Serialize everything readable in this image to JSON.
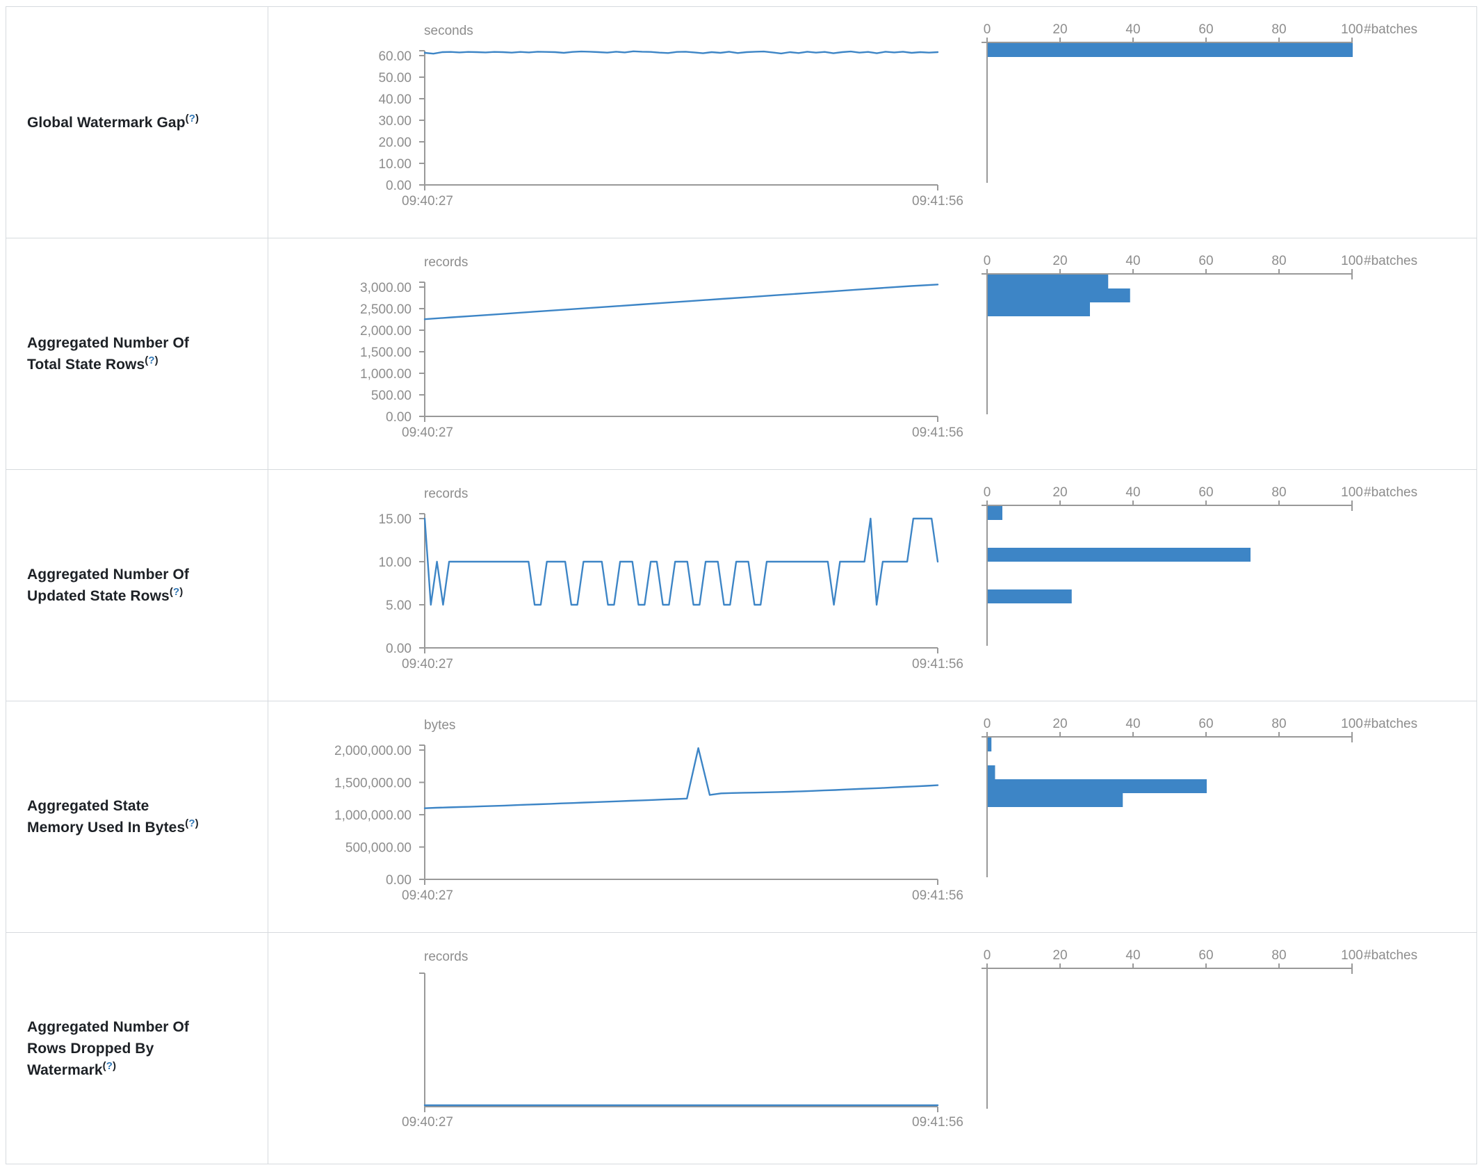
{
  "accent_color": "#3d85c6",
  "axis_color": "#999999",
  "label_color": "#8d8d8d",
  "help_badge": {
    "open": "(",
    "mark": "?",
    "close": ")"
  },
  "rows": [
    {
      "label": "Global Watermark Gap",
      "timeline": "wm_gap_timeline",
      "histogram": "wm_gap_hist"
    },
    {
      "label": "Aggregated Number Of Total State Rows",
      "timeline": "total_rows_timeline",
      "histogram": "total_rows_hist"
    },
    {
      "label": "Aggregated Number Of Updated State Rows",
      "timeline": "updated_rows_timeline",
      "histogram": "updated_rows_hist"
    },
    {
      "label": "Aggregated State Memory Used In Bytes",
      "timeline": "memory_timeline",
      "histogram": "memory_hist"
    },
    {
      "label": "Aggregated Number Of Rows Dropped By Watermark",
      "timeline": "dropped_rows_timeline",
      "histogram": "dropped_rows_hist"
    }
  ],
  "chart_data": [
    {
      "id": "wm_gap_timeline",
      "type": "line",
      "title": "seconds",
      "x_start_label": "09:40:27",
      "x_end_label": "09:41:56",
      "y_ticks": [
        60,
        50,
        40,
        30,
        20,
        10,
        0
      ],
      "y_tick_labels": [
        "60.00",
        "50.00",
        "40.00",
        "30.00",
        "20.00",
        "10.00",
        "0.00"
      ],
      "ylim": [
        0,
        60
      ],
      "bare_axis": false,
      "values": [
        61.3,
        60.9,
        61.6,
        61.7,
        61.5,
        61.7,
        61.6,
        61.5,
        61.7,
        61.6,
        61.4,
        61.7,
        61.5,
        61.8,
        61.7,
        61.6,
        61.3,
        61.7,
        61.9,
        61.8,
        61.6,
        61.4,
        61.8,
        61.5,
        62.0,
        61.8,
        61.7,
        61.4,
        61.2,
        61.7,
        61.8,
        61.5,
        61.1,
        61.6,
        61.3,
        61.8,
        61.2,
        61.6,
        61.8,
        61.9,
        61.5,
        61.0,
        61.6,
        61.2,
        61.8,
        61.4,
        61.7,
        61.1,
        61.6,
        61.9,
        61.4,
        61.7,
        61.1,
        61.8,
        61.5,
        61.8,
        61.3,
        61.6,
        61.4,
        61.6
      ]
    },
    {
      "id": "wm_gap_hist",
      "type": "bar-h",
      "xlabel": "#batches",
      "x_ticks": [
        0,
        20,
        40,
        60,
        80,
        100
      ],
      "xlim": [
        0,
        100
      ],
      "bars": [
        {
          "slot": 0,
          "count": 100
        }
      ]
    },
    {
      "id": "total_rows_timeline",
      "type": "line",
      "title": "records",
      "x_start_label": "09:40:27",
      "x_end_label": "09:41:56",
      "y_ticks": [
        3000,
        2500,
        2000,
        1500,
        1000,
        500,
        0
      ],
      "y_tick_labels": [
        "3,000.00",
        "2,500.00",
        "2,000.00",
        "1,500.00",
        "1,000.00",
        "500.00",
        "0.00"
      ],
      "ylim": [
        0,
        3000
      ],
      "bare_axis": false,
      "values": [
        2255,
        2298,
        2340,
        2383,
        2426,
        2469,
        2512,
        2554,
        2597,
        2640,
        2683,
        2726,
        2768,
        2811,
        2854,
        2897,
        2940,
        2982,
        3025,
        3060
      ]
    },
    {
      "id": "total_rows_hist",
      "type": "bar-h",
      "xlabel": "#batches",
      "x_ticks": [
        0,
        20,
        40,
        60,
        80,
        100
      ],
      "xlim": [
        0,
        100
      ],
      "bars": [
        {
          "slot": 0,
          "count": 33
        },
        {
          "slot": 1,
          "count": 39
        },
        {
          "slot": 2,
          "count": 28
        }
      ]
    },
    {
      "id": "updated_rows_timeline",
      "type": "line",
      "title": "records",
      "x_start_label": "09:40:27",
      "x_end_label": "09:41:56",
      "y_ticks": [
        15,
        10,
        5,
        0
      ],
      "y_tick_labels": [
        "15.00",
        "10.00",
        "5.00",
        "0.00"
      ],
      "ylim": [
        0,
        15
      ],
      "bare_axis": false,
      "values": [
        15,
        5,
        10,
        5,
        10,
        10,
        10,
        10,
        10,
        10,
        10,
        10,
        10,
        10,
        10,
        10,
        10,
        10,
        5,
        5,
        10,
        10,
        10,
        10,
        5,
        5,
        10,
        10,
        10,
        10,
        5,
        5,
        10,
        10,
        10,
        5,
        5,
        10,
        10,
        5,
        5,
        10,
        10,
        10,
        5,
        5,
        10,
        10,
        10,
        5,
        5,
        10,
        10,
        10,
        5,
        5,
        10,
        10,
        10,
        10,
        10,
        10,
        10,
        10,
        10,
        10,
        10,
        5,
        10,
        10,
        10,
        10,
        10,
        15,
        5,
        10,
        10,
        10,
        10,
        10,
        15,
        15,
        15,
        15,
        10
      ]
    },
    {
      "id": "updated_rows_hist",
      "type": "bar-h",
      "xlabel": "#batches",
      "x_ticks": [
        0,
        20,
        40,
        60,
        80,
        100
      ],
      "xlim": [
        0,
        100
      ],
      "bars": [
        {
          "slot": 0,
          "count": 4
        },
        {
          "slot": 3,
          "count": 72
        },
        {
          "slot": 6,
          "count": 23
        }
      ]
    },
    {
      "id": "memory_timeline",
      "type": "line",
      "title": "bytes",
      "x_start_label": "09:40:27",
      "x_end_label": "09:41:56",
      "y_ticks": [
        2000000,
        1500000,
        1000000,
        500000,
        0
      ],
      "y_tick_labels": [
        "2,000,000.00",
        "1,500,000.00",
        "1,000,000.00",
        "500,000.00",
        "0.00"
      ],
      "ylim": [
        0,
        2000000
      ],
      "bare_axis": false,
      "values": [
        1100000,
        1108000,
        1113000,
        1118000,
        1123000,
        1130000,
        1135000,
        1141000,
        1148000,
        1155000,
        1161000,
        1168000,
        1175000,
        1181000,
        1188000,
        1195000,
        1201000,
        1208000,
        1215000,
        1222000,
        1228000,
        1235000,
        1242000,
        1250000,
        2030000,
        1305000,
        1330000,
        1336000,
        1340000,
        1342000,
        1346000,
        1350000,
        1355000,
        1361000,
        1368000,
        1375000,
        1382000,
        1390000,
        1398000,
        1405000,
        1412000,
        1421000,
        1430000,
        1438000,
        1446000,
        1456000
      ]
    },
    {
      "id": "memory_hist",
      "type": "bar-h",
      "xlabel": "#batches",
      "x_ticks": [
        0,
        20,
        40,
        60,
        80,
        100
      ],
      "xlim": [
        0,
        100
      ],
      "bars": [
        {
          "slot": 0,
          "count": 1
        },
        {
          "slot": 2,
          "count": 2
        },
        {
          "slot": 3,
          "count": 60
        },
        {
          "slot": 4,
          "count": 37
        }
      ]
    },
    {
      "id": "dropped_rows_timeline",
      "type": "line",
      "title": "records",
      "x_start_label": "09:40:27",
      "x_end_label": "09:41:56",
      "y_ticks": [],
      "y_tick_labels": [],
      "ylim": [
        0,
        1
      ],
      "bare_axis": true,
      "values": [
        0,
        0,
        0,
        0,
        0,
        0,
        0,
        0,
        0,
        0,
        0,
        0,
        0,
        0,
        0,
        0,
        0,
        0,
        0,
        0,
        0,
        0,
        0,
        0,
        0,
        0,
        0,
        0,
        0,
        0
      ]
    },
    {
      "id": "dropped_rows_hist",
      "type": "bar-h",
      "xlabel": "#batches",
      "x_ticks": [
        0,
        20,
        40,
        60,
        80,
        100
      ],
      "xlim": [
        0,
        100
      ],
      "bars": []
    }
  ]
}
